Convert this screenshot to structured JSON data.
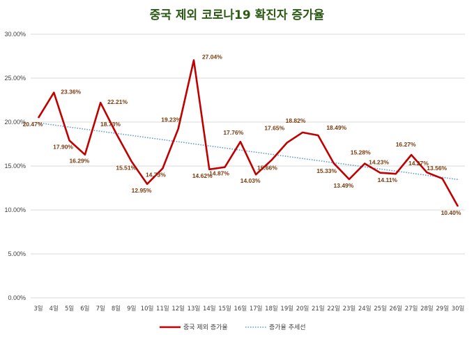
{
  "chart_data": {
    "type": "line",
    "title": "중국 제외 코로나19 확진자 증가율",
    "categories": [
      "3일",
      "4일",
      "5일",
      "6일",
      "7일",
      "8일",
      "9일",
      "10일",
      "11일",
      "12일",
      "13일",
      "14일",
      "15일",
      "16일",
      "17일",
      "18일",
      "19일",
      "20일",
      "21일",
      "22일",
      "23일",
      "24일",
      "25일",
      "26일",
      "27일",
      "28일",
      "29일",
      "30일"
    ],
    "series": [
      {
        "name": "중국 제외 증가율",
        "color": "#c00000",
        "values": [
          20.47,
          23.36,
          17.9,
          16.29,
          22.21,
          18.73,
          15.51,
          12.95,
          14.73,
          19.23,
          27.04,
          14.62,
          14.87,
          17.76,
          14.03,
          15.66,
          17.65,
          18.82,
          18.49,
          15.33,
          13.49,
          15.28,
          14.23,
          14.11,
          16.27,
          14.27,
          13.56,
          10.4
        ],
        "labels": [
          "20.47%",
          "23.36%",
          "17.90%",
          "16.29%",
          "22.21%",
          "18.73%",
          "15.51%",
          "12.95%",
          "14.73%",
          "19.23%",
          "27.04%",
          "14.62%",
          "14.87%",
          "17.76%",
          "14.03%",
          "15.66%",
          "17.65%",
          "18.82%",
          "18.49%",
          "15.33%",
          "13.49%",
          "15.28%",
          "14.23%",
          "14.11%",
          "16.27%",
          "14.27%",
          "13.56%",
          "10.40%"
        ]
      },
      {
        "name": "증가율 추세선",
        "color": "#5b9bd5",
        "style": "dotted",
        "trendline": "linear"
      }
    ],
    "ylim": [
      0,
      30
    ],
    "yticks": [
      "0.00%",
      "5.00%",
      "10.00%",
      "15.00%",
      "20.00%",
      "25.00%",
      "30.00%"
    ],
    "ytick_values": [
      0,
      5,
      10,
      15,
      20,
      25,
      30
    ],
    "grid": true,
    "legend": "bottom",
    "label_color": "#7a3b0e",
    "title_color": "#2b5a14"
  }
}
